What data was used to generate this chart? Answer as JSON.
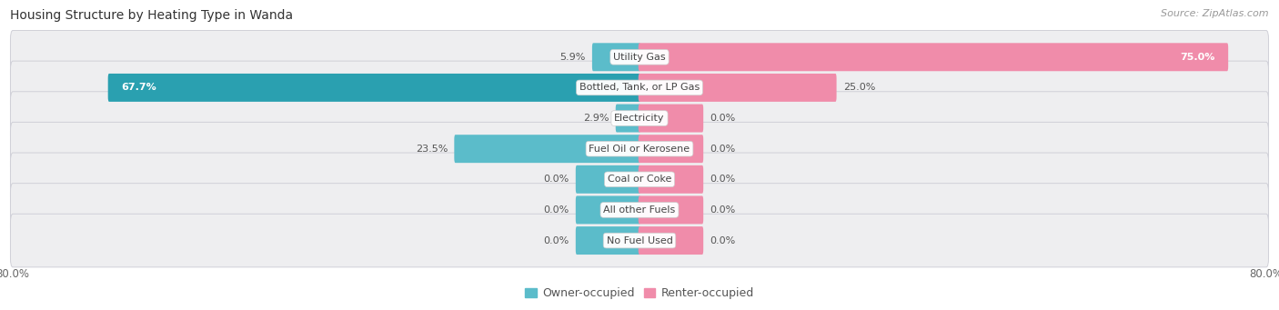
{
  "title": "Housing Structure by Heating Type in Wanda",
  "source": "Source: ZipAtlas.com",
  "categories": [
    "Utility Gas",
    "Bottled, Tank, or LP Gas",
    "Electricity",
    "Fuel Oil or Kerosene",
    "Coal or Coke",
    "All other Fuels",
    "No Fuel Used"
  ],
  "owner_values": [
    5.9,
    67.7,
    2.9,
    23.5,
    0.0,
    0.0,
    0.0
  ],
  "renter_values": [
    75.0,
    25.0,
    0.0,
    0.0,
    0.0,
    0.0,
    0.0
  ],
  "owner_color": "#5bbcca",
  "owner_color_dark": "#2aa0b0",
  "renter_color": "#f08caa",
  "bar_bg_color": "#eeeef0",
  "bar_border_color": "#d0d0d8",
  "axis_limit": 80.0,
  "stub_size": 8.0,
  "title_fontsize": 10,
  "source_fontsize": 8,
  "label_fontsize": 8,
  "category_fontsize": 8,
  "legend_fontsize": 9,
  "tick_fontsize": 8.5,
  "background_color": "#ffffff",
  "legend_owner": "Owner-occupied",
  "legend_renter": "Renter-occupied"
}
